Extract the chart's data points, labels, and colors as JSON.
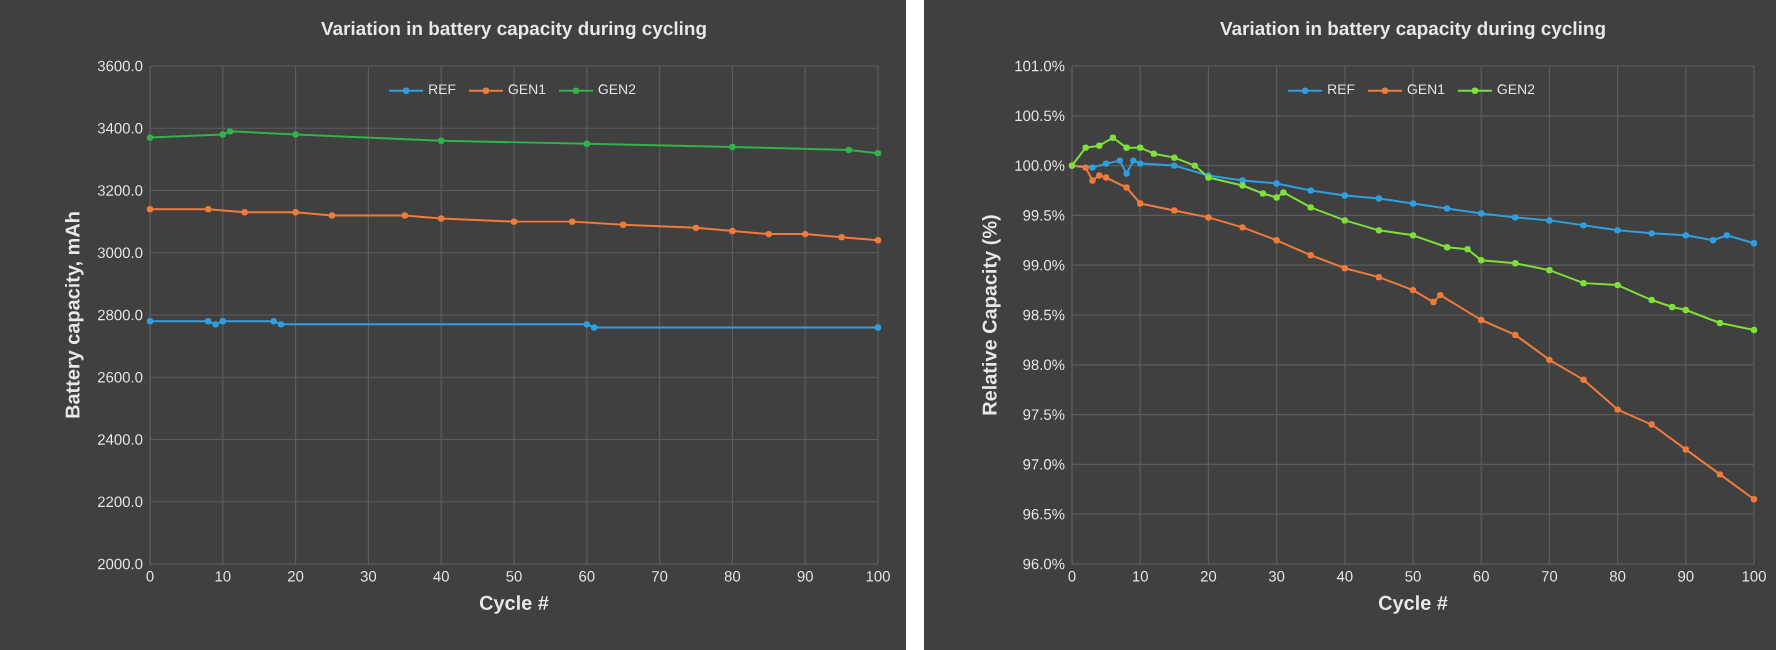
{
  "chart_data": [
    {
      "type": "line",
      "title": "Variation in battery capacity during cycling",
      "xlabel": "Cycle #",
      "ylabel": "Battery capacity, mAh",
      "xlim": [
        0,
        100
      ],
      "xticks": [
        0,
        10,
        20,
        30,
        40,
        50,
        60,
        70,
        80,
        90,
        100
      ],
      "ylim": [
        2000,
        3600
      ],
      "yticks": [
        {
          "value": 2000,
          "label": "2000.0"
        },
        {
          "value": 2200,
          "label": "2200.0"
        },
        {
          "value": 2400,
          "label": "2400.0"
        },
        {
          "value": 2600,
          "label": "2600.0"
        },
        {
          "value": 2800,
          "label": "2800.0"
        },
        {
          "value": 3000,
          "label": "3000.0"
        },
        {
          "value": 3200,
          "label": "3200.0"
        },
        {
          "value": 3400,
          "label": "3400.0"
        },
        {
          "value": 3600,
          "label": "3600.0"
        }
      ],
      "grid": true,
      "legend": "top",
      "marker": "circle",
      "series": [
        {
          "name": "REF",
          "color": "#2e9fe0",
          "x": [
            0,
            8,
            9,
            10,
            17,
            18,
            60,
            61,
            100
          ],
          "values": [
            2780,
            2780,
            2770,
            2780,
            2780,
            2770,
            2770,
            2760,
            2760
          ]
        },
        {
          "name": "GEN1",
          "color": "#f07b3a",
          "x": [
            0,
            8,
            13,
            20,
            25,
            35,
            40,
            50,
            58,
            65,
            75,
            80,
            85,
            90,
            95,
            100
          ],
          "values": [
            3140,
            3140,
            3130,
            3130,
            3120,
            3120,
            3110,
            3100,
            3100,
            3090,
            3080,
            3070,
            3060,
            3060,
            3050,
            3040
          ]
        },
        {
          "name": "GEN2",
          "color": "#2fb34a",
          "x": [
            0,
            10,
            11,
            20,
            40,
            60,
            80,
            96,
            100
          ],
          "values": [
            3370,
            3380,
            3390,
            3380,
            3360,
            3350,
            3340,
            3330,
            3320
          ]
        }
      ]
    },
    {
      "type": "line",
      "title": "Variation in battery capacity during cycling",
      "xlabel": "Cycle #",
      "ylabel": "Relative Capacity (%)",
      "xlim": [
        0,
        100
      ],
      "xticks": [
        0,
        10,
        20,
        30,
        40,
        50,
        60,
        70,
        80,
        90,
        100
      ],
      "ylim": [
        96,
        101
      ],
      "yticks": [
        {
          "value": 96,
          "label": "96.0%"
        },
        {
          "value": 96.5,
          "label": "96.5%"
        },
        {
          "value": 97,
          "label": "97.0%"
        },
        {
          "value": 97.5,
          "label": "97.5%"
        },
        {
          "value": 98,
          "label": "98.0%"
        },
        {
          "value": 98.5,
          "label": "98.5%"
        },
        {
          "value": 99,
          "label": "99.0%"
        },
        {
          "value": 99.5,
          "label": "99.5%"
        },
        {
          "value": 100,
          "label": "100.0%"
        },
        {
          "value": 100.5,
          "label": "100.5%"
        },
        {
          "value": 101,
          "label": "101.0%"
        }
      ],
      "grid": true,
      "legend": "top",
      "marker": "circle",
      "series": [
        {
          "name": "REF",
          "color": "#2e9fe0",
          "x": [
            0,
            3,
            5,
            7,
            8,
            9,
            10,
            15,
            20,
            25,
            30,
            35,
            40,
            45,
            50,
            55,
            60,
            65,
            70,
            75,
            80,
            85,
            90,
            94,
            96,
            100
          ],
          "values": [
            100,
            99.98,
            100.02,
            100.05,
            99.92,
            100.05,
            100.02,
            100.0,
            99.9,
            99.85,
            99.82,
            99.75,
            99.7,
            99.67,
            99.62,
            99.57,
            99.52,
            99.48,
            99.45,
            99.4,
            99.35,
            99.32,
            99.3,
            99.25,
            99.3,
            99.22
          ]
        },
        {
          "name": "GEN1",
          "color": "#f07b3a",
          "x": [
            0,
            2,
            3,
            4,
            5,
            8,
            10,
            15,
            20,
            25,
            30,
            35,
            40,
            45,
            50,
            53,
            54,
            60,
            65,
            70,
            75,
            80,
            85,
            90,
            95,
            100
          ],
          "values": [
            100,
            99.98,
            99.85,
            99.9,
            99.88,
            99.78,
            99.62,
            99.55,
            99.48,
            99.38,
            99.25,
            99.1,
            98.97,
            98.88,
            98.75,
            98.63,
            98.7,
            98.45,
            98.3,
            98.05,
            97.85,
            97.55,
            97.4,
            97.15,
            96.9,
            96.65
          ]
        },
        {
          "name": "GEN2",
          "color": "#7ee03a",
          "x": [
            0,
            2,
            4,
            6,
            8,
            10,
            12,
            15,
            18,
            20,
            25,
            28,
            30,
            31,
            35,
            40,
            45,
            50,
            55,
            58,
            60,
            65,
            70,
            75,
            80,
            85,
            88,
            90,
            95,
            100
          ],
          "values": [
            100,
            100.18,
            100.2,
            100.28,
            100.18,
            100.18,
            100.12,
            100.08,
            100.0,
            99.88,
            99.8,
            99.72,
            99.68,
            99.73,
            99.58,
            99.45,
            99.35,
            99.3,
            99.18,
            99.16,
            99.05,
            99.02,
            98.95,
            98.82,
            98.8,
            98.65,
            98.58,
            98.55,
            98.42,
            98.35
          ]
        }
      ]
    }
  ]
}
